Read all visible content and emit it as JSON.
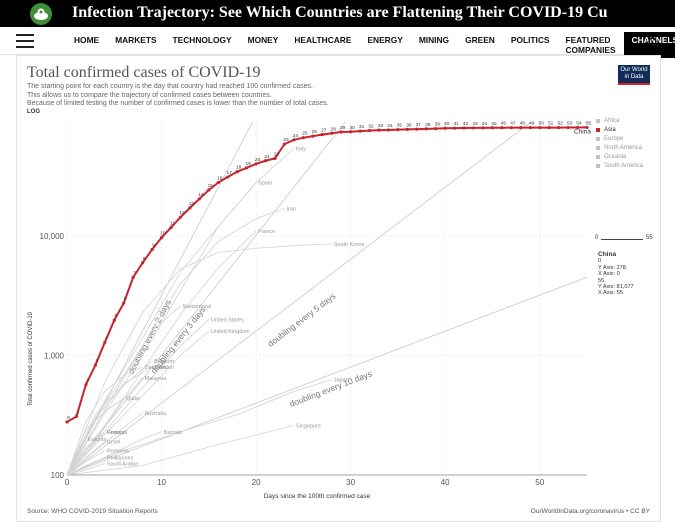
{
  "header": {
    "title": "Infection Trajectory: See Which Countries are Flattening Their COVID-19 Cu",
    "logo_icon": "site-logo-icon"
  },
  "nav": {
    "menu_icon": "hamburger-menu-icon",
    "items": [
      "HOME",
      "MARKETS",
      "TECHNOLOGY",
      "MONEY",
      "HEALTHCARE",
      "ENERGY",
      "MINING",
      "GREEN",
      "POLITICS",
      "FEATURED COMPANIES",
      "CHANNELS"
    ],
    "active_index": 10,
    "search_icon": "search-icon"
  },
  "chart": {
    "title": "Total confirmed cases of COVID-19",
    "subtitle": [
      "The starting point for each country is the day that country had reached 100 confirmed cases.",
      "This allows us to compare the trajectory of confirmed cases between countries.",
      "Because of limited testing the number of confirmed cases is lower than the number of total cases."
    ],
    "scale_label": "LOG",
    "owid_badge": [
      "Our World",
      "in Data"
    ],
    "ylabel": "Total confirmed cases of COVID-19",
    "xlabel": "Days since the 100th confirmed case",
    "source": "Source: WHO COVID-2019 Situation Reports",
    "license": "OurWorldInData.org/coronavirus • CC BY",
    "legend": [
      {
        "label": "Africa",
        "color": "#c3c3c3"
      },
      {
        "label": "Asia",
        "color": "#c7252b"
      },
      {
        "label": "Europe",
        "color": "#c3c3c3"
      },
      {
        "label": "North America",
        "color": "#c3c3c3"
      },
      {
        "label": "Oceania",
        "color": "#c3c3c3"
      },
      {
        "label": "South America",
        "color": "#c3c3c3"
      }
    ],
    "slider": {
      "min": "0",
      "max": "55"
    },
    "hover": {
      "country": "China",
      "first_day": "0",
      "first_y": "Y Axis: 278",
      "first_x": "X Axis: 0",
      "last_day": "55",
      "last_y": "Y Axis: 81,077",
      "last_x": "X Axis: 55"
    },
    "accent_color": "#c7252b"
  },
  "chart_data": {
    "type": "line",
    "yscale": "log",
    "xlim": [
      0,
      55
    ],
    "ylim": [
      100,
      90000
    ],
    "xticks": [
      "0",
      "10",
      "20",
      "30",
      "40",
      "50"
    ],
    "yticks": [
      "100",
      "1,000",
      "10,000"
    ],
    "highlight": {
      "name": "China",
      "x": [
        0,
        1,
        2,
        3,
        4,
        5,
        6,
        7,
        8,
        9,
        10,
        11,
        12,
        13,
        14,
        15,
        16,
        17,
        18,
        19,
        20,
        21,
        22,
        23,
        24,
        25,
        26,
        27,
        28,
        29,
        30,
        31,
        32,
        33,
        34,
        35,
        36,
        37,
        38,
        39,
        40,
        41,
        42,
        43,
        44,
        45,
        46,
        47,
        48,
        49,
        50,
        51,
        52,
        53,
        54,
        55
      ],
      "y": [
        278,
        309,
        571,
        830,
        1287,
        1975,
        2744,
        4515,
        5974,
        7711,
        9692,
        11791,
        14380,
        17205,
        20438,
        24324,
        28018,
        31161,
        34546,
        37198,
        40171,
        42638,
        44653,
        58761,
        63851,
        66492,
        68500,
        70548,
        72436,
        74185,
        74576,
        75465,
        76288,
        76936,
        77150,
        77658,
        78064,
        78497,
        78824,
        79251,
        79824,
        80026,
        80151,
        80270,
        80409,
        80552,
        80651,
        80695,
        80735,
        80754,
        80778,
        80793,
        80813,
        80859,
        80904,
        81077
      ]
    },
    "series_labels": [
      "China",
      "Italy",
      "Iran",
      "Spain",
      "South Korea",
      "France",
      "Switzerland",
      "United States",
      "United Kingdom",
      "Belgium",
      "Sweden",
      "Denmark",
      "Malaysia",
      "Japan",
      "Qatar",
      "Australia",
      "Bahrain",
      "Greece",
      "Singapore",
      "Portugal",
      "Israel",
      "Estonia",
      "Romania",
      "Philippines",
      "Saudi Arabia"
    ],
    "guides": [
      {
        "label": "doubling every 2 days",
        "days": 2
      },
      {
        "label": "doubling every 3 days",
        "days": 3
      },
      {
        "label": "doubling every 5 days",
        "days": 5
      },
      {
        "label": "doubling every 10 days",
        "days": 10
      }
    ],
    "grey_series": [
      {
        "name": "Italy",
        "x": [
          0,
          4,
          8,
          12,
          16,
          20,
          24
        ],
        "y": [
          100,
          420,
          1400,
          5000,
          12000,
          28000,
          54000
        ]
      },
      {
        "name": "Iran",
        "x": [
          0,
          4,
          8,
          12,
          16,
          20,
          23
        ],
        "y": [
          100,
          350,
          1200,
          4000,
          9000,
          14000,
          17000
        ]
      },
      {
        "name": "Spain",
        "x": [
          0,
          4,
          8,
          12,
          16,
          20
        ],
        "y": [
          100,
          330,
          1000,
          3500,
          12000,
          28000
        ]
      },
      {
        "name": "South Korea",
        "x": [
          0,
          4,
          8,
          12,
          16,
          20,
          24,
          28
        ],
        "y": [
          100,
          600,
          2300,
          5300,
          7300,
          7900,
          8300,
          8600
        ]
      },
      {
        "name": "France",
        "x": [
          0,
          4,
          8,
          12,
          16,
          20
        ],
        "y": [
          100,
          260,
          750,
          2200,
          5400,
          11000
        ]
      },
      {
        "name": "Switzerland",
        "x": [
          0,
          3,
          6,
          9,
          12
        ],
        "y": [
          100,
          300,
          680,
          1600,
          2600
        ]
      },
      {
        "name": "United States",
        "x": [
          0,
          4,
          8,
          12,
          15
        ],
        "y": [
          100,
          230,
          540,
          1200,
          2000
        ]
      },
      {
        "name": "United Kingdom",
        "x": [
          0,
          4,
          8,
          12,
          15
        ],
        "y": [
          100,
          220,
          460,
          1000,
          1600
        ]
      },
      {
        "name": "Belgium",
        "x": [
          0,
          3,
          6,
          9
        ],
        "y": [
          100,
          300,
          560,
          900
        ]
      },
      {
        "name": "Sweden",
        "x": [
          0,
          3,
          6,
          9
        ],
        "y": [
          100,
          320,
          580,
          800
        ]
      },
      {
        "name": "Denmark",
        "x": [
          0,
          2,
          4,
          6,
          8
        ],
        "y": [
          100,
          280,
          500,
          680,
          800
        ]
      },
      {
        "name": "Malaysia",
        "x": [
          0,
          2,
          4,
          6,
          8
        ],
        "y": [
          100,
          150,
          250,
          430,
          650
        ]
      },
      {
        "name": "Japan",
        "x": [
          0,
          6,
          12,
          18,
          24,
          28
        ],
        "y": [
          100,
          160,
          230,
          320,
          500,
          630
        ]
      },
      {
        "name": "Qatar",
        "x": [
          0,
          2,
          4,
          6
        ],
        "y": [
          100,
          240,
          340,
          440
        ]
      },
      {
        "name": "Australia",
        "x": [
          0,
          3,
          6,
          8
        ],
        "y": [
          100,
          160,
          250,
          330
        ]
      },
      {
        "name": "Bahrain",
        "x": [
          0,
          4,
          8,
          10
        ],
        "y": [
          100,
          140,
          200,
          230
        ]
      },
      {
        "name": "Greece",
        "x": [
          0,
          2,
          4
        ],
        "y": [
          100,
          170,
          230
        ]
      },
      {
        "name": "Singapore",
        "x": [
          0,
          8,
          16,
          24
        ],
        "y": [
          100,
          120,
          180,
          260
        ]
      },
      {
        "name": "Portugal",
        "x": [
          0,
          2,
          4
        ],
        "y": [
          100,
          170,
          230
        ]
      },
      {
        "name": "Israel",
        "x": [
          0,
          2,
          4
        ],
        "y": [
          100,
          140,
          190
        ]
      },
      {
        "name": "Estonia",
        "x": [
          0,
          1,
          2
        ],
        "y": [
          100,
          160,
          200
        ]
      },
      {
        "name": "Romania",
        "x": [
          0,
          2,
          4
        ],
        "y": [
          100,
          130,
          160
        ]
      },
      {
        "name": "Philippines",
        "x": [
          0,
          2,
          4
        ],
        "y": [
          100,
          120,
          140
        ]
      },
      {
        "name": "Saudi Arabia",
        "x": [
          0,
          2,
          4
        ],
        "y": [
          100,
          110,
          125
        ]
      }
    ]
  }
}
